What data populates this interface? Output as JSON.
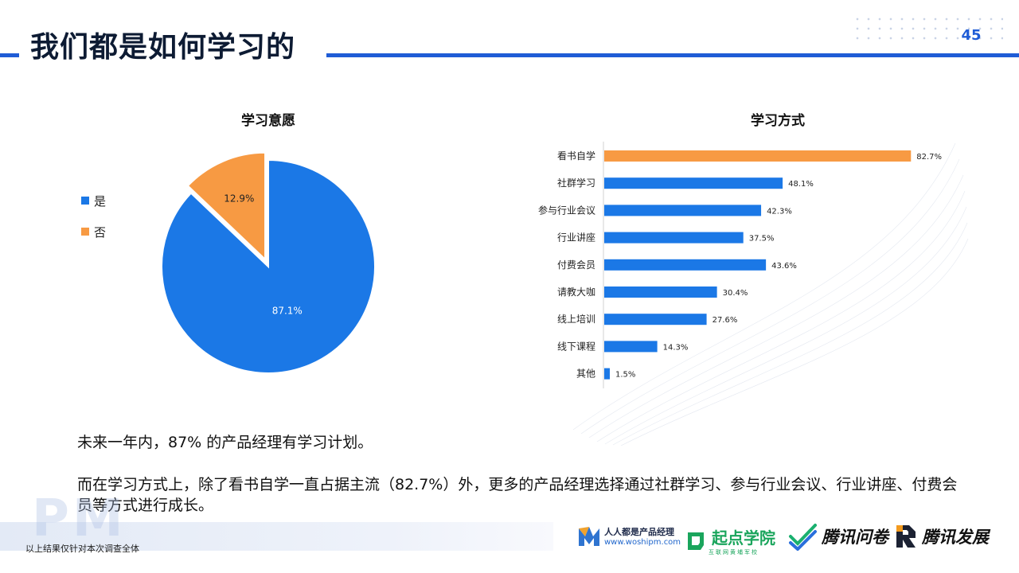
{
  "header": {
    "title": "我们都是如何学习的",
    "page_number": "45"
  },
  "colors": {
    "accent": "#1f5cd6",
    "bar_blue": "#1b78e6",
    "bar_orange": "#f79a43",
    "pie_blue": "#1b78e6",
    "pie_orange": "#f79a43"
  },
  "chart_data": [
    {
      "type": "pie",
      "title": "学习意愿",
      "categories": [
        "是",
        "否"
      ],
      "values": [
        87.1,
        12.9
      ],
      "data_labels": [
        "87.1%",
        "12.9%"
      ],
      "legend_position": "left",
      "exploded": "否"
    },
    {
      "type": "bar",
      "orientation": "horizontal",
      "title": "学习方式",
      "categories": [
        "看书自学",
        "社群学习",
        "参与行业会议",
        "行业讲座",
        "付费会员",
        "请教大咖",
        "线上培训",
        "线下课程",
        "其他"
      ],
      "values": [
        82.7,
        48.1,
        42.3,
        37.5,
        43.6,
        30.4,
        27.6,
        14.3,
        1.5
      ],
      "data_labels": [
        "82.7%",
        "48.1%",
        "42.3%",
        "37.5%",
        "43.6%",
        "30.4%",
        "27.6%",
        "14.3%",
        "1.5%"
      ],
      "highlight": "看书自学",
      "xlim": [
        0,
        85
      ]
    }
  ],
  "summary": {
    "line1": "未来一年内，87% 的产品经理有学习计划。",
    "line2": "而在学习方式上，除了看书自学一直占据主流（82.7%）外，更多的产品经理选择通过社群学习、参与行业会议、行业讲座、付费会员等方式进行成长。"
  },
  "footer": {
    "watermark": "PM",
    "footnote": "以上结果仅针对本次调查全体",
    "logos": {
      "renren_name": "人人都是产品经理",
      "renren_url": "www.woshipm.com",
      "qidian_name": "起点学院",
      "qidian_sub": "互联网黄埔军校",
      "wenjuan_name": "腾讯问卷",
      "fazhan_name": "腾讯发展"
    }
  }
}
